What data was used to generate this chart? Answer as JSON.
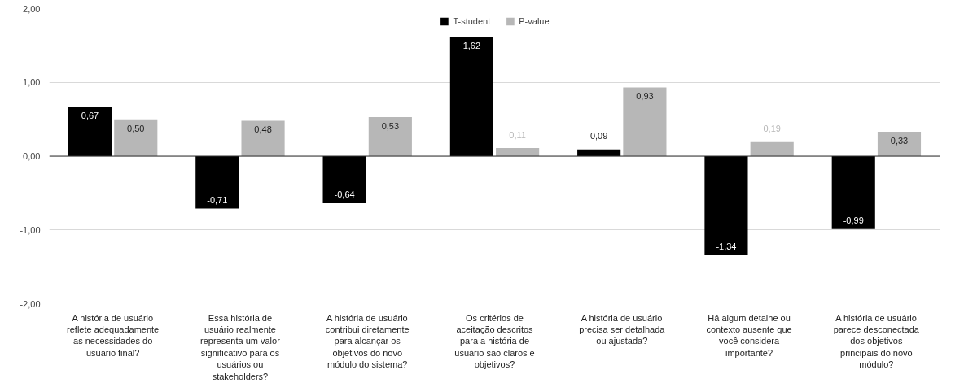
{
  "chart_data": {
    "type": "bar",
    "categories": [
      "A história de usuário reflete adequadamente as necessidades do usuário final?",
      "Essa história de usuário realmente representa um valor significativo para os usuários ou stakeholders?",
      "A história de usuário contribui diretamente para alcançar os objetivos do novo módulo do sistema?",
      "Os critérios de aceitação descritos para a história de usuário são claros e objetivos?",
      "A história de usuário precisa ser detalhada ou ajustada?",
      "Há algum detalhe ou contexto ausente que você considera importante?",
      "A história de usuário parece desconectada dos objetivos principais do novo módulo?"
    ],
    "series": [
      {
        "name": "T-student",
        "color": "#000000",
        "values": [
          0.67,
          -0.71,
          -0.64,
          1.62,
          0.09,
          -1.34,
          -0.99
        ],
        "value_labels": [
          "0,67",
          "-0,71",
          "-0,64",
          "1,62",
          "0,09",
          "-1,34",
          "-0,99"
        ]
      },
      {
        "name": "P-value",
        "color": "#b7b7b7",
        "values": [
          0.5,
          0.48,
          0.53,
          0.11,
          0.93,
          0.19,
          0.33
        ],
        "value_labels": [
          "0,50",
          "0,48",
          "0,53",
          "0,11",
          "0,93",
          "0,19",
          "0,33"
        ]
      }
    ],
    "ylim": [
      -2,
      2
    ],
    "yticks": [
      {
        "value": -2,
        "label": "-2,00"
      },
      {
        "value": -1,
        "label": "-1,00"
      },
      {
        "value": 0,
        "label": "0,00"
      },
      {
        "value": 1,
        "label": "1,00"
      },
      {
        "value": 2,
        "label": "2,00"
      }
    ],
    "grid": "y",
    "legend": "top"
  }
}
